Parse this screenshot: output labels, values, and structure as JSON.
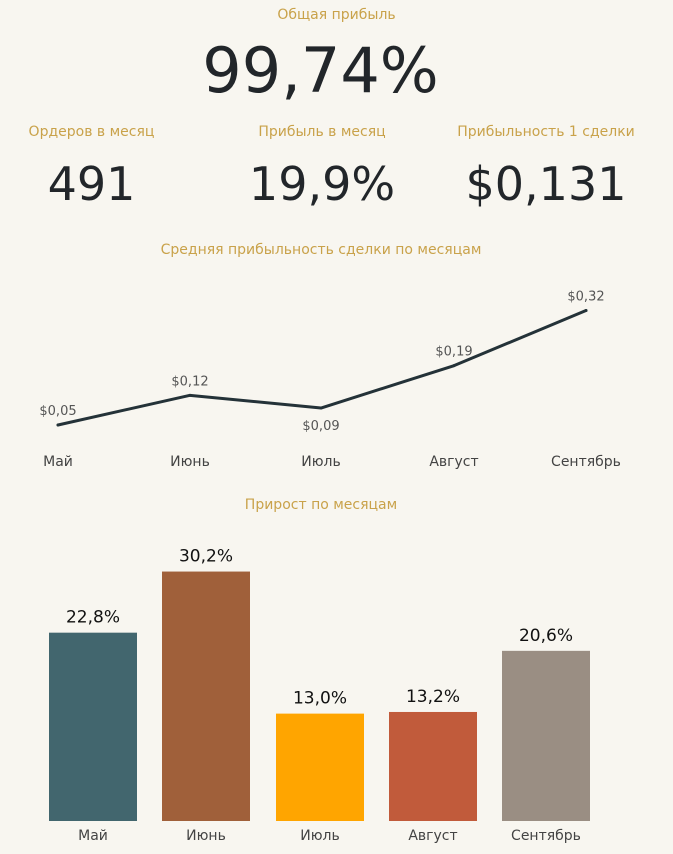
{
  "kpi": {
    "total_label": "Общая прибыль",
    "total_value": "99,74%",
    "orders_label": "Ордеров в месяц",
    "orders_value": "491",
    "monthly_label": "Прибыль в месяц",
    "monthly_value": "19,9%",
    "per_trade_label": "Прибыльность 1 сделки",
    "per_trade_value": "$0,131"
  },
  "colors": {
    "label": "#c9a24a",
    "line": "#243238",
    "background": "#f8f6f0"
  },
  "chart_data": [
    {
      "type": "line",
      "title": "Средняя прибыльность сделки по месяцам",
      "categories": [
        "Май",
        "Июнь",
        "Июль",
        "Август",
        "Сентябрь"
      ],
      "values": [
        0.05,
        0.12,
        0.09,
        0.19,
        0.32
      ],
      "value_labels": [
        "$0,05",
        "$0,12",
        "$0,09",
        "$0,19",
        "$0,32"
      ],
      "grid": false
    },
    {
      "type": "bar",
      "title": "Прирост по месяцам",
      "categories": [
        "Май",
        "Июнь",
        "Июль",
        "Август",
        "Сентябрь"
      ],
      "values": [
        22.8,
        30.2,
        13.0,
        13.2,
        20.6
      ],
      "value_labels": [
        "22,8%",
        "30,2%",
        "13,0%",
        "13,2%",
        "20,6%"
      ],
      "bar_colors": [
        "#42666e",
        "#a0603a",
        "#ffa500",
        "#c15b3b",
        "#9a8e83"
      ],
      "grid": false
    }
  ]
}
